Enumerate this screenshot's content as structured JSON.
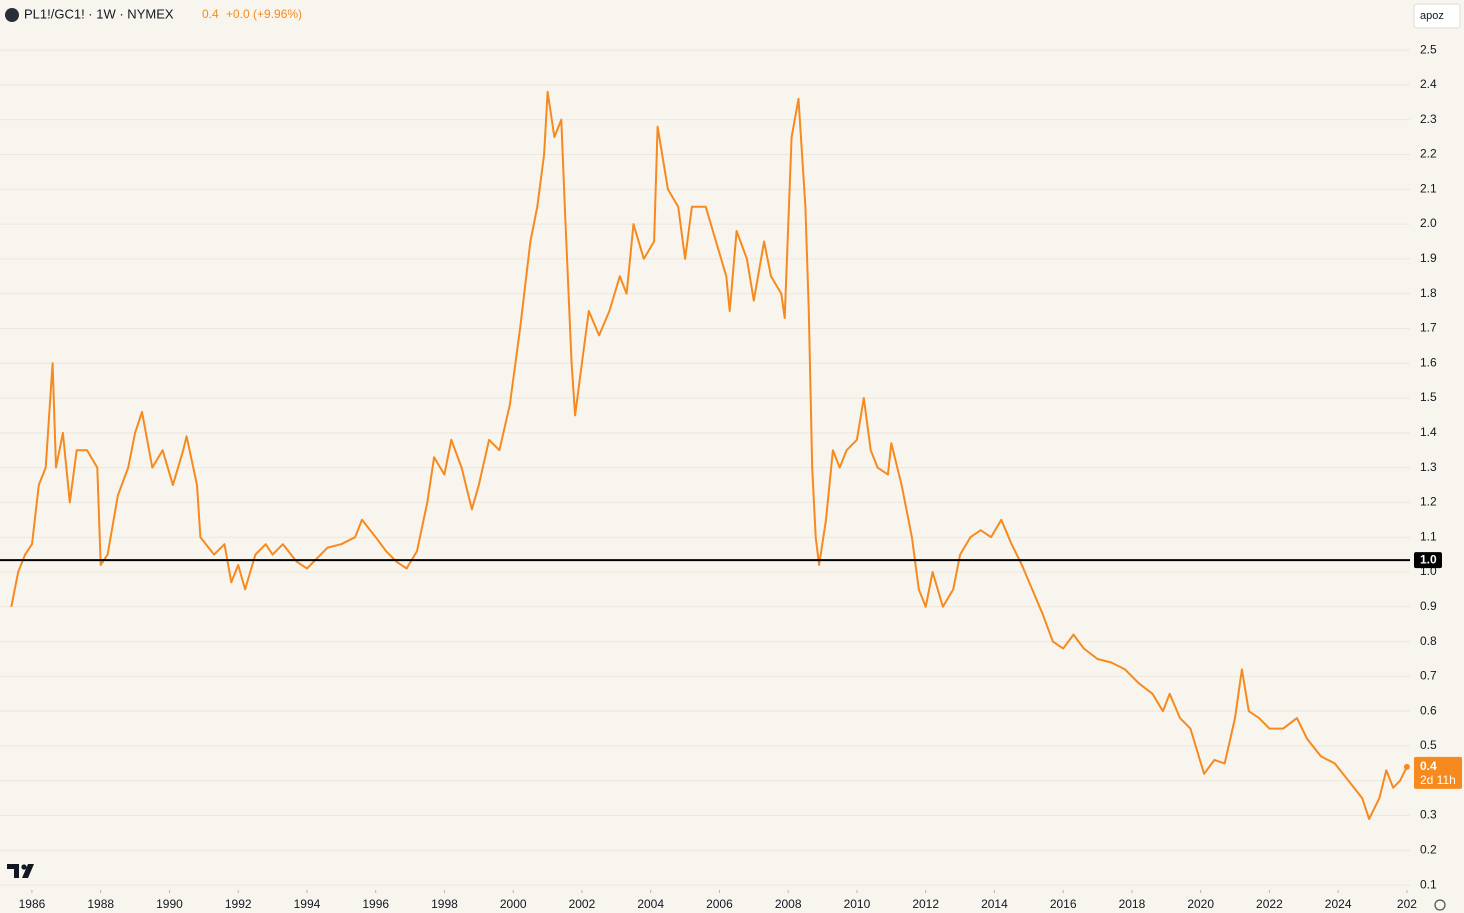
{
  "chart_data": {
    "type": "line",
    "title": "PL1!/GC1! · 1W · NYMEX",
    "last_value": "0.4",
    "change": "+0.0 (+9.96%)",
    "countdown": "2d 11h",
    "user": "apoz",
    "color": "#f68a1f",
    "grid": true,
    "hline": {
      "value": 1.034,
      "label": "1.0"
    },
    "xlim": [
      1985.07,
      2026.09
    ],
    "ylim": [
      0.086,
      2.644
    ],
    "xticks": [
      1986,
      1988,
      1990,
      1992,
      1994,
      1996,
      1998,
      2000,
      2002,
      2004,
      2006,
      2008,
      2010,
      2012,
      2014,
      2016,
      2018,
      2020,
      2022,
      2024,
      {
        "value": 2026,
        "label": "202"
      }
    ],
    "yticks": [
      0.1,
      0.2,
      0.3,
      0.4,
      0.5,
      0.6,
      0.7,
      0.8,
      0.9,
      {
        "value": 1,
        "label": "1.0"
      },
      1.1,
      1.2,
      1.3,
      1.4,
      1.5,
      1.6,
      1.7,
      1.8,
      1.9,
      {
        "value": 2,
        "label": "2.0"
      },
      2.1,
      2.2,
      2.3,
      2.4,
      2.5
    ],
    "x": [
      1985.4,
      1985.6,
      1985.8,
      1986.0,
      1986.2,
      1986.4,
      1986.6,
      1986.7,
      1986.9,
      1987.1,
      1987.3,
      1987.6,
      1987.9,
      1988.0,
      1988.2,
      1988.5,
      1988.8,
      1989.0,
      1989.2,
      1989.5,
      1989.8,
      1990.1,
      1990.4,
      1990.5,
      1990.8,
      1990.9,
      1991.3,
      1991.6,
      1991.8,
      1992.0,
      1992.2,
      1992.5,
      1992.8,
      1993.0,
      1993.3,
      1993.7,
      1994.0,
      1994.3,
      1994.6,
      1995.0,
      1995.4,
      1995.6,
      1996.0,
      1996.3,
      1996.6,
      1996.9,
      1997.2,
      1997.5,
      1997.7,
      1998.0,
      1998.2,
      1998.5,
      1998.8,
      1999.0,
      1999.3,
      1999.6,
      1999.9,
      2000.2,
      2000.5,
      2000.7,
      2000.9,
      2001.0,
      2001.2,
      2001.4,
      2001.5,
      2001.7,
      2001.8,
      2002.0,
      2002.2,
      2002.5,
      2002.8,
      2003.1,
      2003.3,
      2003.5,
      2003.8,
      2004.1,
      2004.2,
      2004.5,
      2004.8,
      2005.0,
      2005.2,
      2005.6,
      2005.9,
      2006.2,
      2006.3,
      2006.5,
      2006.8,
      2007.0,
      2007.3,
      2007.5,
      2007.8,
      2007.9,
      2008.1,
      2008.3,
      2008.5,
      2008.6,
      2008.7,
      2008.8,
      2008.9,
      2009.1,
      2009.3,
      2009.5,
      2009.7,
      2010.0,
      2010.2,
      2010.4,
      2010.6,
      2010.9,
      2011.0,
      2011.3,
      2011.6,
      2011.8,
      2012.0,
      2012.2,
      2012.5,
      2012.8,
      2013.0,
      2013.3,
      2013.6,
      2013.9,
      2014.2,
      2014.5,
      2014.8,
      2015.1,
      2015.4,
      2015.7,
      2016.0,
      2016.3,
      2016.6,
      2017.0,
      2017.4,
      2017.8,
      2018.2,
      2018.6,
      2018.9,
      2019.1,
      2019.4,
      2019.7,
      2020.1,
      2020.4,
      2020.7,
      2021.0,
      2021.2,
      2021.4,
      2021.7,
      2022.0,
      2022.4,
      2022.8,
      2023.1,
      2023.5,
      2023.9,
      2024.3,
      2024.7,
      2024.9,
      2025.2,
      2025.4,
      2025.6,
      2025.8,
      2026.0
    ],
    "values": [
      0.9,
      1.0,
      1.05,
      1.08,
      1.25,
      1.3,
      1.6,
      1.3,
      1.4,
      1.2,
      1.35,
      1.35,
      1.3,
      1.02,
      1.05,
      1.22,
      1.3,
      1.4,
      1.46,
      1.3,
      1.35,
      1.25,
      1.35,
      1.39,
      1.25,
      1.1,
      1.05,
      1.08,
      0.97,
      1.02,
      0.95,
      1.05,
      1.08,
      1.05,
      1.08,
      1.03,
      1.01,
      1.04,
      1.07,
      1.08,
      1.1,
      1.15,
      1.1,
      1.06,
      1.03,
      1.01,
      1.06,
      1.2,
      1.33,
      1.28,
      1.38,
      1.3,
      1.18,
      1.25,
      1.38,
      1.35,
      1.48,
      1.7,
      1.95,
      2.05,
      2.2,
      2.38,
      2.25,
      2.3,
      2.05,
      1.6,
      1.45,
      1.6,
      1.75,
      1.68,
      1.75,
      1.85,
      1.8,
      2.0,
      1.9,
      1.95,
      2.28,
      2.1,
      2.05,
      1.9,
      2.05,
      2.05,
      1.95,
      1.85,
      1.75,
      1.98,
      1.9,
      1.78,
      1.95,
      1.85,
      1.8,
      1.73,
      2.25,
      2.36,
      2.05,
      1.75,
      1.3,
      1.1,
      1.02,
      1.15,
      1.35,
      1.3,
      1.35,
      1.38,
      1.5,
      1.35,
      1.3,
      1.28,
      1.37,
      1.25,
      1.1,
      0.95,
      0.9,
      1.0,
      0.9,
      0.95,
      1.05,
      1.1,
      1.12,
      1.1,
      1.15,
      1.08,
      1.02,
      0.95,
      0.88,
      0.8,
      0.78,
      0.82,
      0.78,
      0.75,
      0.74,
      0.72,
      0.68,
      0.65,
      0.6,
      0.65,
      0.58,
      0.55,
      0.42,
      0.46,
      0.45,
      0.58,
      0.72,
      0.6,
      0.58,
      0.55,
      0.55,
      0.58,
      0.52,
      0.47,
      0.45,
      0.4,
      0.35,
      0.29,
      0.35,
      0.43,
      0.38,
      0.4,
      0.44
    ]
  }
}
